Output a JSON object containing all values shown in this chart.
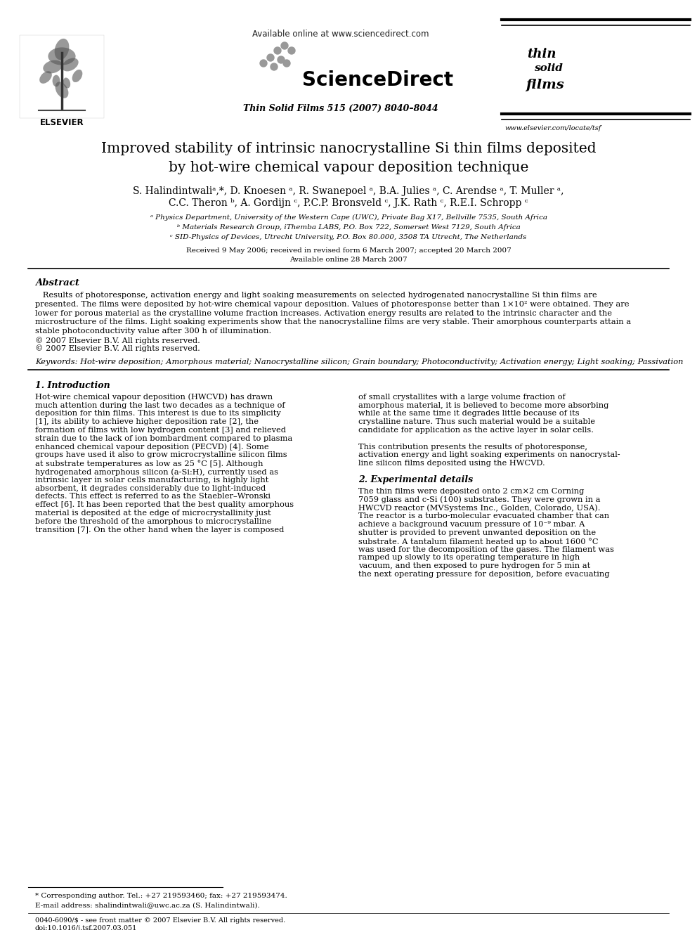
{
  "bg_color": "#ffffff",
  "title": "Improved stability of intrinsic nanocrystalline Si thin films deposited\nby hot-wire chemical vapour deposition technique",
  "authors_line1": "S. Halindintwaliᵃ,*, D. Knoesen ᵃ, R. Swanepoel ᵃ, B.A. Julies ᵃ, C. Arendse ᵃ, T. Muller ᵃ,",
  "authors_line2": "C.C. Theron ᵇ, A. Gordijn ᶜ, P.C.P. Bronsveld ᶜ, J.K. Rath ᶜ, R.E.I. Schropp ᶜ",
  "affil1": "ᵃ Physics Department, University of the Western Cape (UWC), Private Bag X17, Bellville 7535, South Africa",
  "affil2": "ᵇ Materials Research Group, iThemba LABS, P.O. Box 722, Somerset West 7129, South Africa",
  "affil3": "ᶜ SID-Physics of Devices, Utrecht University, P.O. Box 80.000, 3508 TA Utrecht, The Netherlands",
  "received": "Received 9 May 2006; received in revised form 6 March 2007; accepted 20 March 2007",
  "available": "Available online 28 March 2007",
  "journal": "Thin Solid Films 515 (2007) 8040–8044",
  "available_online": "Available online at www.sciencedirect.com",
  "science_direct": "ScienceDirect",
  "elsevier_url": "www.elsevier.com/locate/tsf",
  "doi": "doi:10.1016/j.tsf.2007.03.051",
  "issn": "0040-6090/$ - see front matter © 2007 Elsevier B.V. All rights reserved.",
  "abstract_title": "Abstract",
  "keywords": "Keywords: Hot-wire deposition; Amorphous material; Nanocrystalline silicon; Grain boundary; Photoconductivity; Activation energy; Light soaking; Passivation",
  "section1_title": "1. Introduction",
  "section2_title": "2. Experimental details",
  "footnote_corresp": "* Corresponding author. Tel.: +27 219593460; fax: +27 219593474.",
  "footnote_email": "E-mail address: shalindintwali@uwc.ac.za (S. Halindintwali).",
  "abstract_lines": [
    "   Results of photoresponse, activation energy and light soaking measurements on selected hydrogenated nanocrystalline Si thin films are",
    "presented. The films were deposited by hot-wire chemical vapour deposition. Values of photoresponse better than 1×10² were obtained. They are",
    "lower for porous material as the crystalline volume fraction increases. Activation energy results are related to the intrinsic character and the",
    "microstructure of the films. Light soaking experiments show that the nanocrystalline films are very stable. Their amorphous counterparts attain a",
    "stable photoconductivity value after 300 h of illumination.",
    "© 2007 Elsevier B.V. All rights reserved."
  ],
  "col1_lines": [
    "Hot-wire chemical vapour deposition (HWCVD) has drawn",
    "much attention during the last two decades as a technique of",
    "deposition for thin films. This interest is due to its simplicity",
    "[1], its ability to achieve higher deposition rate [2], the",
    "formation of films with low hydrogen content [3] and relieved",
    "strain due to the lack of ion bombardment compared to plasma",
    "enhanced chemical vapour deposition (PECVD) [4]. Some",
    "groups have used it also to grow microcrystalline silicon films",
    "at substrate temperatures as low as 25 °C [5]. Although",
    "hydrogenated amorphous silicon (a-Si:H), currently used as",
    "intrinsic layer in solar cells manufacturing, is highly light",
    "absorbent, it degrades considerably due to light-induced",
    "defects. This effect is referred to as the Staebler–Wronski",
    "effect [6]. It has been reported that the best quality amorphous",
    "material is deposited at the edge of microcrystallinity just",
    "before the threshold of the amorphous to microcrystalline",
    "transition [7]. On the other hand when the layer is composed"
  ],
  "col2_lines_s1": [
    "of small crystallites with a large volume fraction of",
    "amorphous material, it is believed to become more absorbing",
    "while at the same time it degrades little because of its",
    "crystalline nature. Thus such material would be a suitable",
    "candidate for application as the active layer in solar cells.",
    "",
    "This contribution presents the results of photoresponse,",
    "activation energy and light soaking experiments on nanocrystal-",
    "line silicon films deposited using the HWCVD."
  ],
  "col2_lines_s2": [
    "The thin films were deposited onto 2 cm×2 cm Corning",
    "7059 glass and c-Si (100) substrates. They were grown in a",
    "HWCVD reactor (MVSystems Inc., Golden, Colorado, USA).",
    "The reactor is a turbo-molecular evacuated chamber that can",
    "achieve a background vacuum pressure of 10⁻⁹ mbar. A",
    "shutter is provided to prevent unwanted deposition on the",
    "substrate. A tantalum filament heated up to about 1600 °C",
    "was used for the decomposition of the gases. The filament was",
    "ramped up slowly to its operating temperature in high",
    "vacuum, and then exposed to pure hydrogen for 5 min at",
    "the next operating pressure for deposition, before evacuating"
  ]
}
